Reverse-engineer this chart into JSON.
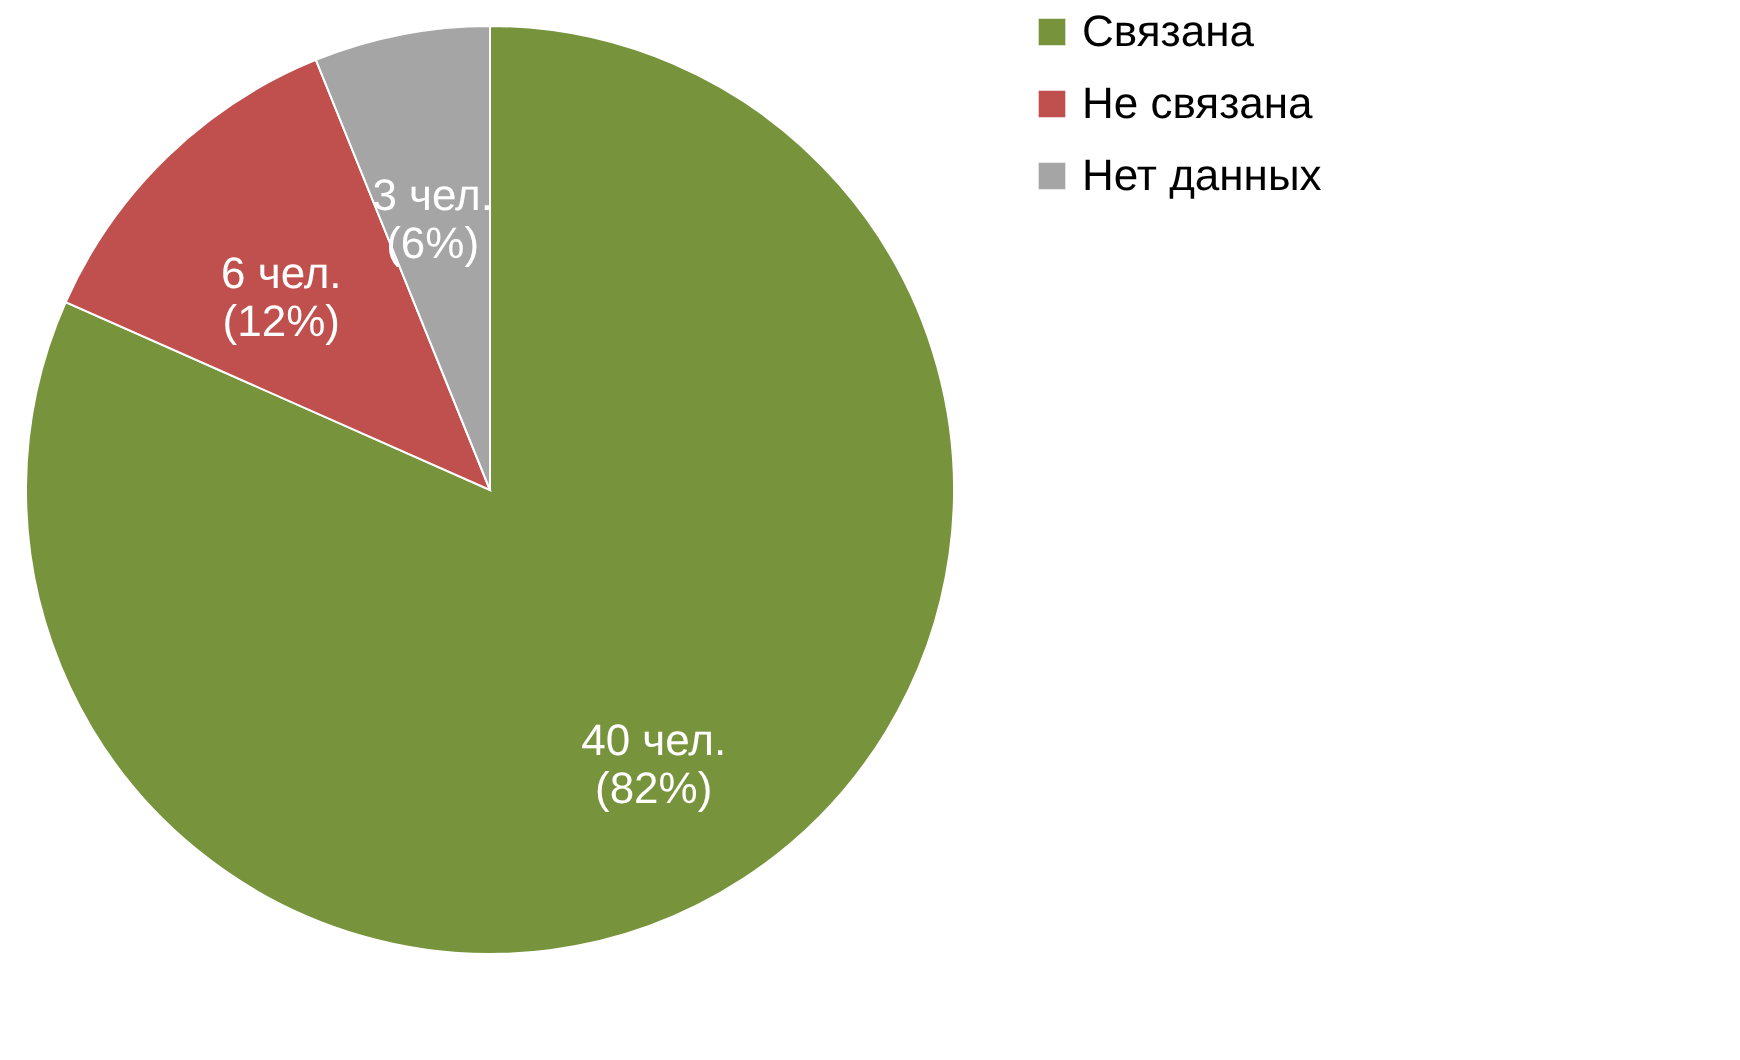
{
  "chart_data": {
    "type": "pie",
    "categories": [
      "Связана",
      "Не связана",
      "Нет данных"
    ],
    "values": [
      40,
      6,
      3
    ],
    "colors": [
      "#77933c",
      "#c0504d",
      "#a5a5a5"
    ],
    "value_labels": [
      "40 чел.\n(82%)",
      "6 чел.\n(12%)",
      "3 чел.\n(6%)"
    ],
    "legend": "right"
  }
}
